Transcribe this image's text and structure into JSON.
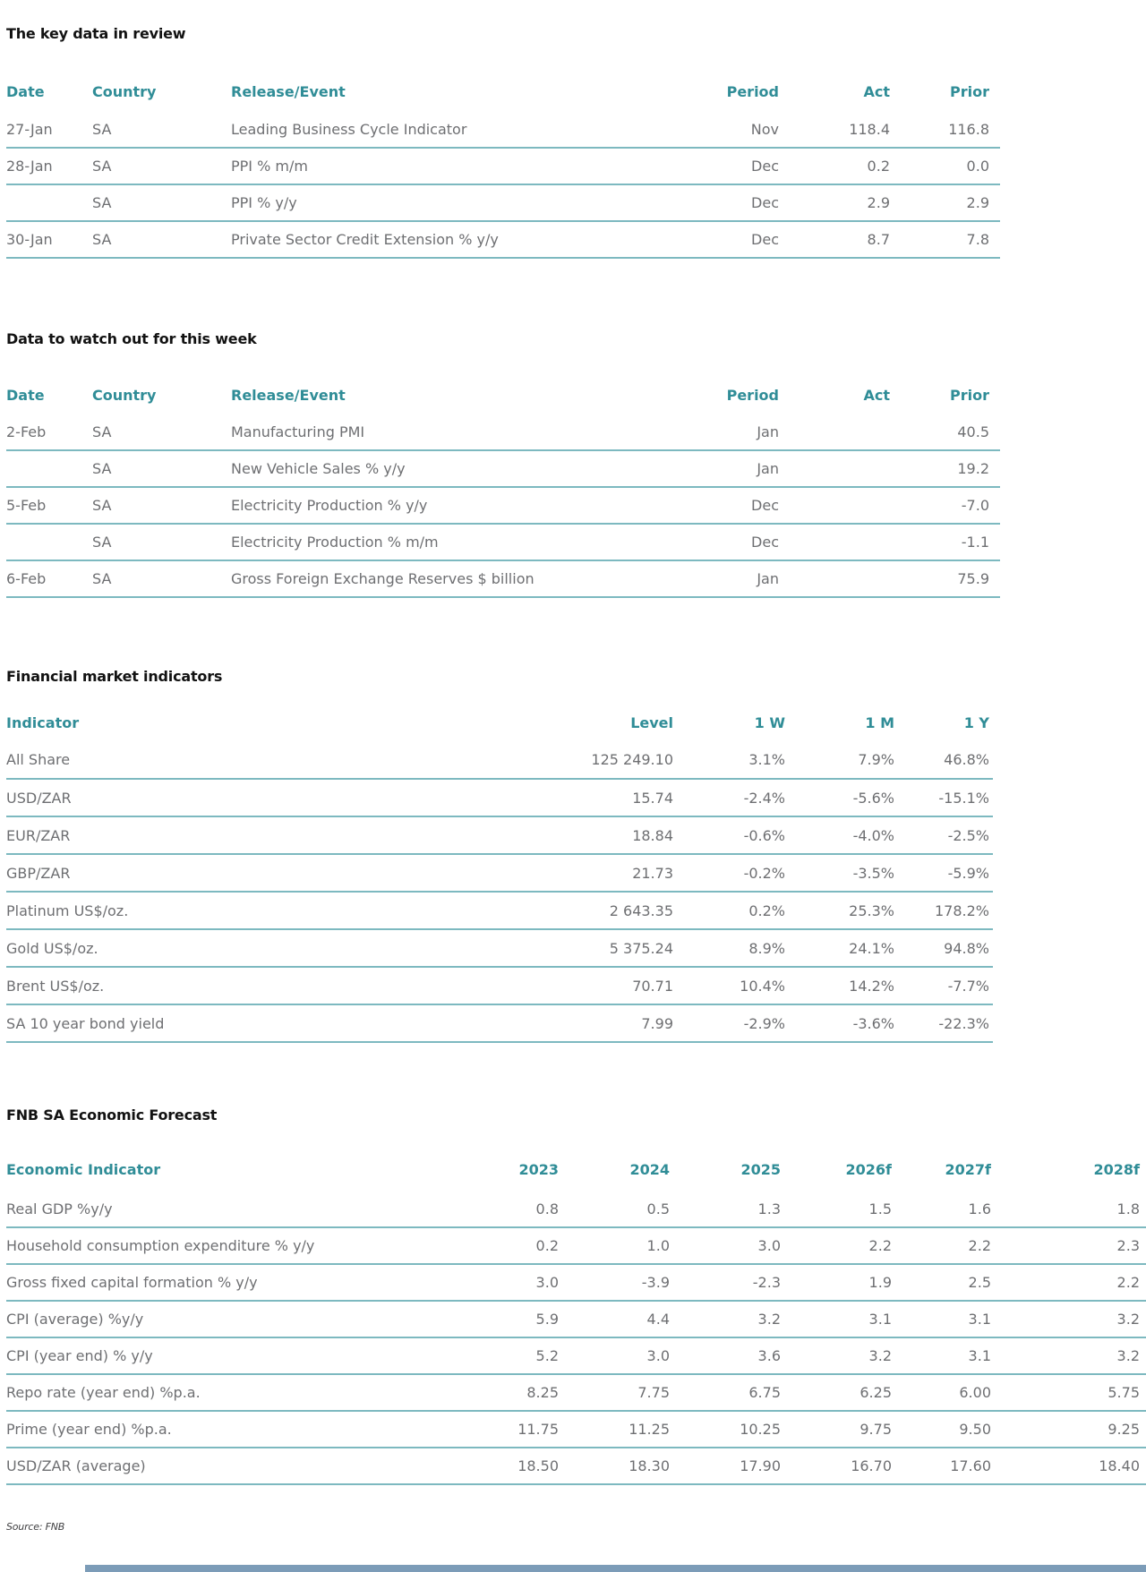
{
  "sections": {
    "key_data": {
      "title": "The key data in review",
      "table": {
        "columns": [
          "Date",
          "Country",
          "Release/Event",
          "Period",
          "Act",
          "Prior"
        ],
        "rows": [
          [
            "27-Jan",
            "SA",
            "Leading Business Cycle Indicator",
            "Nov",
            "118.4",
            "116.8"
          ],
          [
            "28-Jan",
            "SA",
            "PPI % m/m",
            "Dec",
            "0.2",
            "0.0"
          ],
          [
            "",
            "SA",
            "PPI % y/y",
            "Dec",
            "2.9",
            "2.9"
          ],
          [
            "30-Jan",
            "SA",
            "Private Sector Credit Extension % y/y",
            "Dec",
            "8.7",
            "7.8"
          ]
        ]
      }
    },
    "watch_week": {
      "title": "Data to watch out for this week",
      "table": {
        "columns": [
          "Date",
          "Country",
          "Release/Event",
          "Period",
          "Act",
          "Prior"
        ],
        "rows": [
          [
            "2-Feb",
            "SA",
            "Manufacturing PMI",
            "Jan",
            "",
            "40.5"
          ],
          [
            "",
            "SA",
            "New Vehicle Sales % y/y",
            "Jan",
            "",
            "19.2"
          ],
          [
            "5-Feb",
            "SA",
            "Electricity Production % y/y",
            "Dec",
            "",
            "-7.0"
          ],
          [
            "",
            "SA",
            "Electricity Production % m/m",
            "Dec",
            "",
            "-1.1"
          ],
          [
            "6-Feb",
            "SA",
            "Gross Foreign Exchange Reserves $ billion",
            "Jan",
            "",
            "75.9"
          ]
        ]
      }
    },
    "market_indicators": {
      "title": "Financial market indicators",
      "table": {
        "columns": [
          "Indicator",
          "Level",
          "1 W",
          "1 M",
          "1 Y"
        ],
        "rows": [
          [
            "All Share",
            "125 249.10",
            "3.1%",
            "7.9%",
            "46.8%"
          ],
          [
            "USD/ZAR",
            "15.74",
            "-2.4%",
            "-5.6%",
            "-15.1%"
          ],
          [
            "EUR/ZAR",
            "18.84",
            "-0.6%",
            "-4.0%",
            "-2.5%"
          ],
          [
            "GBP/ZAR",
            "21.73",
            "-0.2%",
            "-3.5%",
            "-5.9%"
          ],
          [
            "Platinum US$/oz.",
            "2 643.35",
            "0.2%",
            "25.3%",
            "178.2%"
          ],
          [
            "Gold US$/oz.",
            "5 375.24",
            "8.9%",
            "24.1%",
            "94.8%"
          ],
          [
            "Brent US$/oz.",
            "70.71",
            "10.4%",
            "14.2%",
            "-7.7%"
          ],
          [
            "SA 10 year bond yield",
            "7.99",
            "-2.9%",
            "-3.6%",
            "-22.3%"
          ]
        ]
      }
    },
    "forecast": {
      "title": "FNB SA Economic Forecast",
      "table": {
        "columns": [
          "Economic Indicator",
          "2023",
          "2024",
          "2025",
          "2026f",
          "2027f",
          "2028f"
        ],
        "rows": [
          [
            "Real GDP %y/y",
            "0.8",
            "0.5",
            "1.3",
            "1.5",
            "1.6",
            "1.8"
          ],
          [
            "Household consumption expenditure % y/y",
            "0.2",
            "1.0",
            "3.0",
            "2.2",
            "2.2",
            "2.3"
          ],
          [
            "Gross fixed capital formation % y/y",
            "3.0",
            "-3.9",
            "-2.3",
            "1.9",
            "2.5",
            "2.2"
          ],
          [
            "CPI (average) %y/y",
            "5.9",
            "4.4",
            "3.2",
            "3.1",
            "3.1",
            "3.2"
          ],
          [
            "CPI (year end) % y/y",
            "5.2",
            "3.0",
            "3.6",
            "3.2",
            "3.1",
            "3.2"
          ],
          [
            "Repo rate (year end) %p.a.",
            "8.25",
            "7.75",
            "6.75",
            "6.25",
            "6.00",
            "5.75"
          ],
          [
            "Prime (year end) %p.a.",
            "11.75",
            "11.25",
            "10.25",
            "9.75",
            "9.50",
            "9.25"
          ],
          [
            "USD/ZAR (average)",
            "18.50",
            "18.30",
            "17.90",
            "16.70",
            "17.60",
            "18.40"
          ]
        ]
      }
    }
  },
  "footer": {
    "source": "Source: FNB"
  },
  "colors": {
    "accent_teal": "#308d97",
    "divider_teal": "#7db9c0",
    "body_text": "#6e6f72",
    "title_text": "#121212",
    "footer_bar": "#7c9cb8"
  }
}
